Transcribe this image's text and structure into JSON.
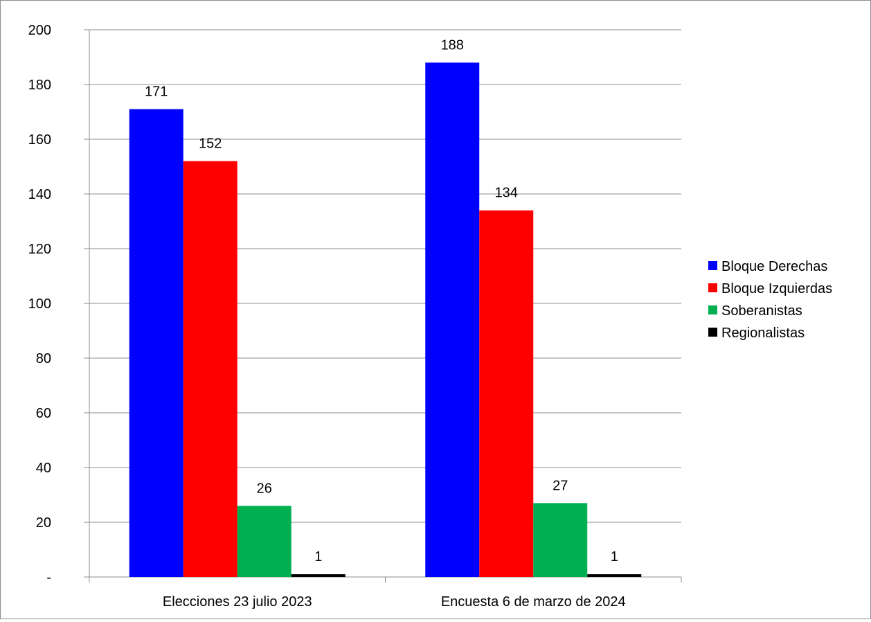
{
  "chart_data": {
    "type": "bar",
    "title": "",
    "xlabel": "",
    "ylabel": "",
    "categories": [
      "Elecciones 23 julio 2023",
      "Encuesta 6 de marzo de 2024"
    ],
    "series": [
      {
        "name": "Bloque Derechas",
        "color": "#0000ff",
        "values": [
          171,
          188
        ]
      },
      {
        "name": "Bloque Izquierdas",
        "color": "#ff0000",
        "values": [
          152,
          134
        ]
      },
      {
        "name": "Soberanistas",
        "color": "#00b050",
        "values": [
          26,
          27
        ]
      },
      {
        "name": "Regionalistas",
        "color": "#000000",
        "values": [
          1,
          1
        ]
      }
    ],
    "ylim": [
      0,
      200
    ],
    "yticks": [
      0,
      20,
      40,
      60,
      80,
      100,
      120,
      140,
      160,
      180,
      200
    ],
    "ytick_labels": [
      "-",
      "20",
      "40",
      "60",
      "80",
      "100",
      "120",
      "140",
      "160",
      "180",
      "200"
    ],
    "grid": true,
    "legend_position": "right",
    "data_labels": true
  }
}
